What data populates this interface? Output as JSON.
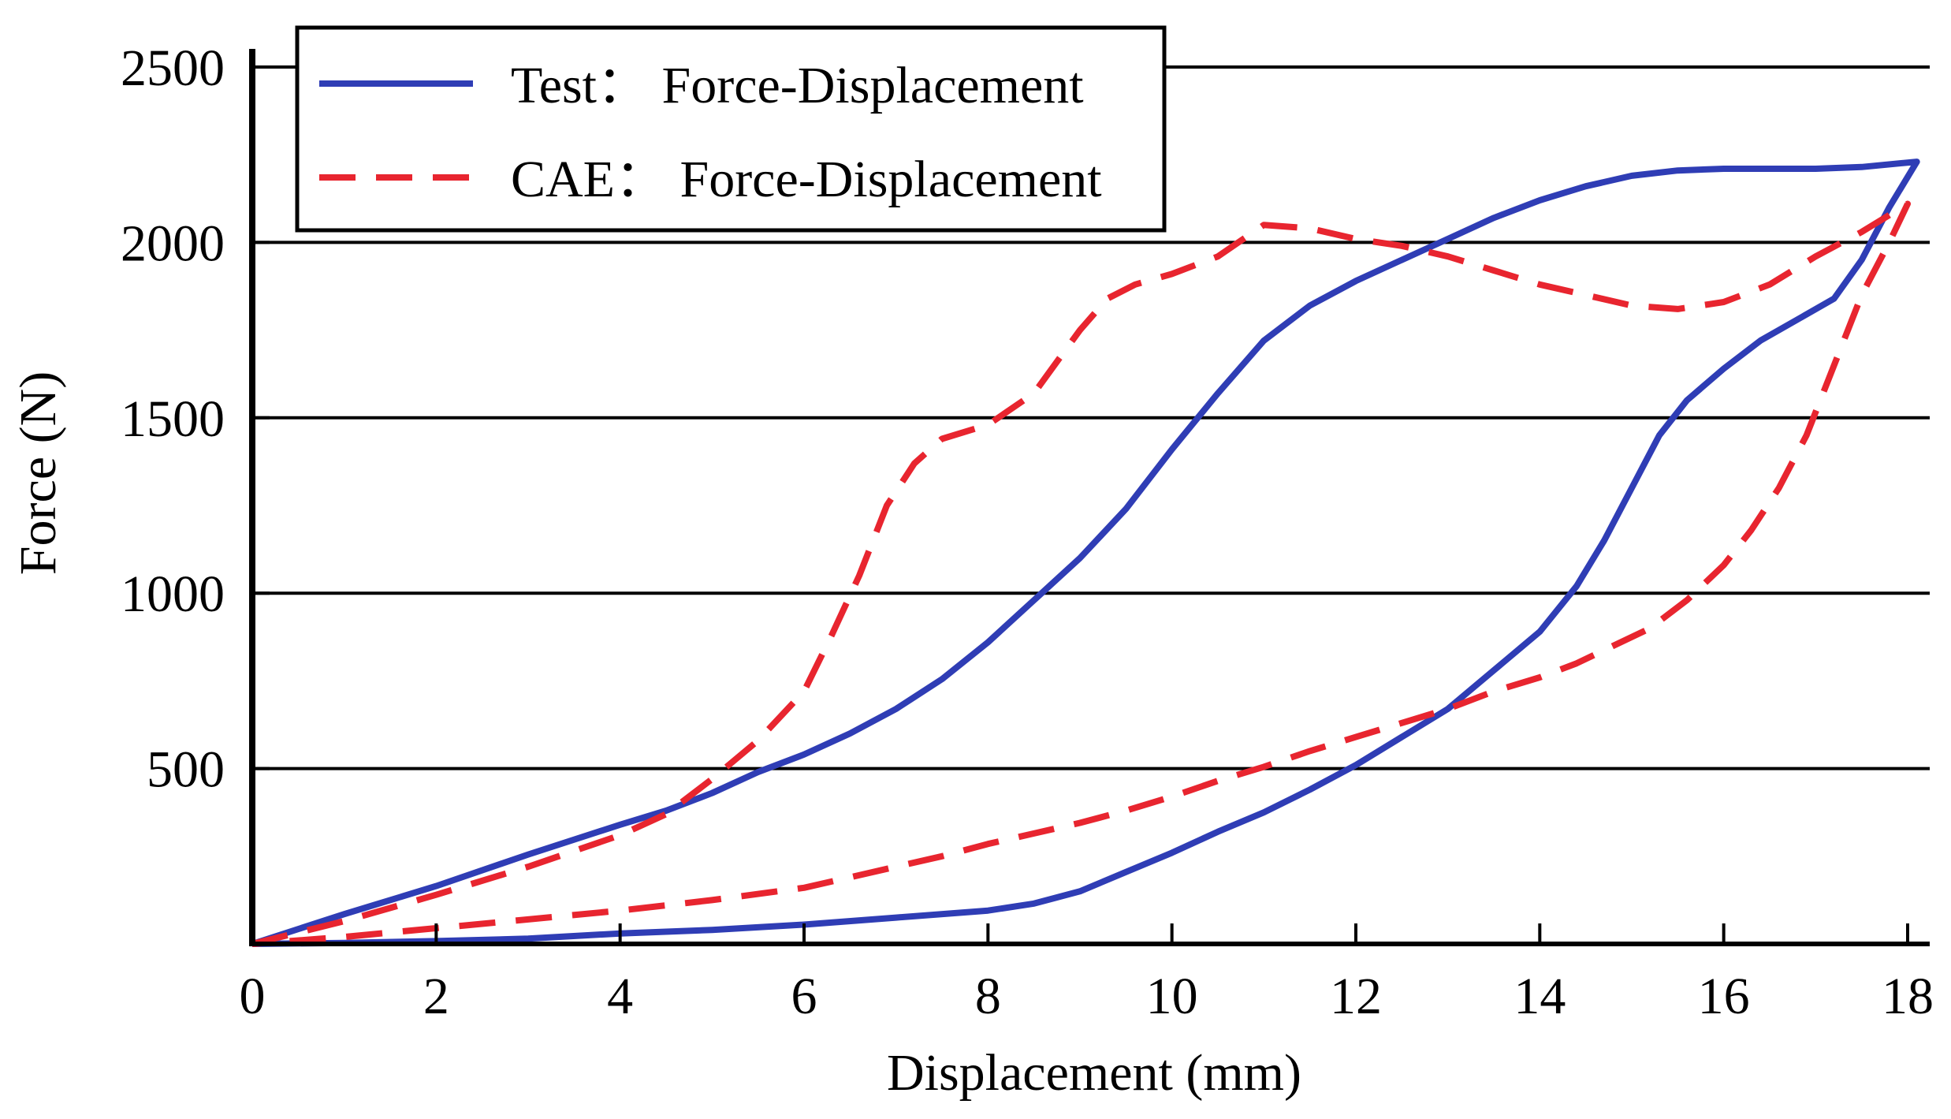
{
  "chart_data": {
    "type": "line",
    "title": "",
    "xlabel": "Displacement (mm)",
    "ylabel": "Force (N)",
    "xlim": [
      0,
      18
    ],
    "ylim": [
      0,
      2500
    ],
    "xticks": [
      0,
      2,
      4,
      6,
      8,
      10,
      12,
      14,
      16,
      18
    ],
    "yticks": [
      500,
      1000,
      1500,
      2000,
      2500
    ],
    "grid": "horizontal",
    "legend_position": "top-left",
    "series": [
      {
        "name": "Test： Force-Displacement",
        "color": "#2f3db5",
        "style": "solid",
        "x": [
          0,
          1,
          2,
          3,
          4,
          4.5,
          5,
          5.5,
          6,
          6.5,
          7,
          7.5,
          8,
          8.5,
          9,
          9.5,
          10,
          10.5,
          11,
          11.5,
          12,
          12.5,
          13,
          13.5,
          14,
          14.5,
          15,
          15.5,
          16,
          16.5,
          17,
          17.5,
          18.1,
          17.8,
          17.5,
          17.2,
          16.8,
          16.4,
          16,
          15.6,
          15.3,
          15,
          14.7,
          14.4,
          14,
          13.5,
          13,
          12.5,
          12,
          11.5,
          11,
          10.5,
          10,
          9.5,
          9,
          8.5,
          8,
          7,
          6,
          5,
          4,
          3,
          2,
          1,
          0
        ],
        "y": [
          0,
          85,
          165,
          255,
          340,
          380,
          430,
          490,
          540,
          600,
          670,
          755,
          860,
          980,
          1100,
          1240,
          1410,
          1570,
          1720,
          1820,
          1890,
          1950,
          2010,
          2070,
          2120,
          2160,
          2190,
          2205,
          2210,
          2210,
          2210,
          2215,
          2230,
          2100,
          1950,
          1840,
          1780,
          1720,
          1640,
          1550,
          1450,
          1300,
          1150,
          1020,
          890,
          780,
          670,
          590,
          510,
          440,
          375,
          320,
          260,
          205,
          150,
          115,
          95,
          75,
          55,
          40,
          30,
          15,
          8,
          3,
          0
        ]
      },
      {
        "name": "CAE： Force-Displacement",
        "color": "#e8252f",
        "style": "dashed",
        "x": [
          0,
          1,
          2,
          3,
          4,
          4.5,
          5,
          5.5,
          6,
          6.3,
          6.6,
          6.9,
          7.2,
          7.5,
          8,
          8.5,
          9,
          9.3,
          9.6,
          10,
          10.5,
          11,
          11.5,
          12,
          12.5,
          13,
          13.5,
          14,
          14.5,
          15,
          15.5,
          16,
          16.5,
          17,
          17.5,
          18,
          17.8,
          17.5,
          17.2,
          16.9,
          16.6,
          16.3,
          16,
          15.6,
          15.2,
          14.8,
          14.4,
          14,
          13.5,
          13,
          12.5,
          12,
          11.5,
          11,
          10.5,
          10,
          9.5,
          9,
          8.5,
          8,
          7.5,
          7,
          6.5,
          6,
          5,
          4,
          3,
          2,
          1,
          0
        ],
        "y": [
          0,
          65,
          140,
          220,
          310,
          370,
          470,
          580,
          720,
          880,
          1050,
          1250,
          1370,
          1440,
          1480,
          1570,
          1750,
          1840,
          1880,
          1910,
          1960,
          2050,
          2040,
          2010,
          1990,
          1960,
          1920,
          1880,
          1850,
          1820,
          1810,
          1830,
          1880,
          1960,
          2030,
          2110,
          2000,
          1850,
          1650,
          1450,
          1300,
          1180,
          1080,
          980,
          900,
          850,
          800,
          760,
          720,
          670,
          630,
          590,
          550,
          505,
          465,
          420,
          380,
          345,
          315,
          285,
          250,
          220,
          190,
          160,
          125,
          95,
          70,
          45,
          20,
          0
        ]
      }
    ]
  }
}
